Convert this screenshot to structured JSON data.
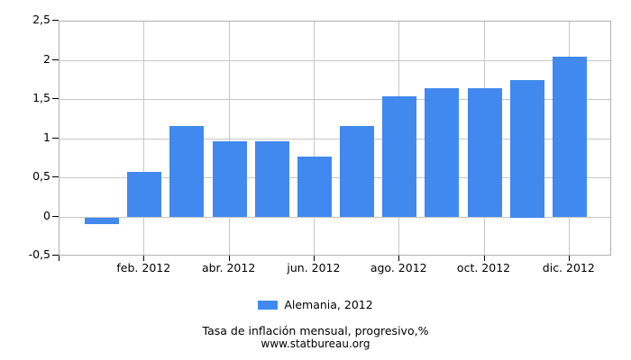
{
  "chart_data": {
    "type": "bar",
    "title": "Tasa de inflación mensual, progresivo,%",
    "source": "www.statbureau.org",
    "legend": {
      "label": "Alemania, 2012"
    },
    "months_count": 12,
    "series": [
      {
        "name": "Alemania, 2012",
        "values": [
          -0.09,
          0.58,
          1.17,
          0.97,
          0.97,
          0.78,
          1.17,
          1.55,
          1.65,
          1.65,
          1.75,
          2.05
        ]
      }
    ],
    "x_ticks": [
      {
        "month_index": 1,
        "label": "feb. 2012"
      },
      {
        "month_index": 3,
        "label": "abr. 2012"
      },
      {
        "month_index": 5,
        "label": "jun. 2012"
      },
      {
        "month_index": 7,
        "label": "ago. 2012"
      },
      {
        "month_index": 9,
        "label": "oct. 2012"
      },
      {
        "month_index": 11,
        "label": "dic. 2012"
      }
    ],
    "y_ticks": [
      {
        "value": 2.5,
        "label": "2,5"
      },
      {
        "value": 2,
        "label": "2"
      },
      {
        "value": 1.5,
        "label": "1,5"
      },
      {
        "value": 1,
        "label": "1"
      },
      {
        "value": 0.5,
        "label": "0,5"
      },
      {
        "value": 0,
        "label": "0"
      },
      {
        "value": -0.5,
        "label": "-0,5"
      }
    ],
    "ylim": [
      -0.5,
      2.5
    ],
    "grid": true,
    "legend_position": "bottom",
    "colors": {
      "bar": "#4189ee",
      "gridline": "#c6c6c6",
      "plot_border": "#b0b0b0",
      "tick": "#000000",
      "text": "#000000"
    }
  }
}
